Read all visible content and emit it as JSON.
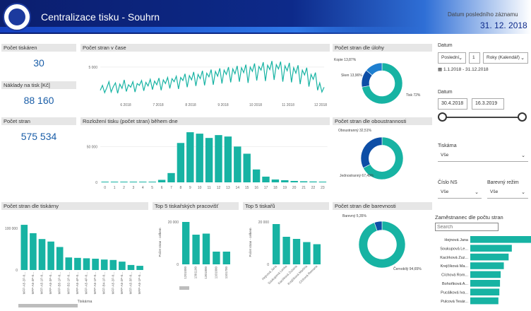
{
  "header": {
    "title": "Centralizace tisku - Souhrn",
    "last_record_label": "Datum posledního záznamu",
    "last_record_value": "31. 12. 2018"
  },
  "kpis": {
    "printers_label": "Počet tiskáren",
    "printers_value": "30",
    "costs_label": "Náklady na tisk [Kč]",
    "costs_value": "88 160",
    "pages_label": "Počet stran",
    "pages_value": "575 534"
  },
  "panels": {
    "pages_over_time": "Počet stran v čase",
    "print_distribution": "Rozložení tisku (počet stran) během dne",
    "by_task": "Počet stran dle úlohy",
    "by_duplex": "Počet stran dle oboustrannosti",
    "by_printer": "Počet stran dle tiskárny",
    "top_workstations": "Top 5 tiskařských pracovišť",
    "top_printers": "Top 5 tiskařů",
    "by_color": "Počet stran dle barevnosti",
    "employees": "Zaměstnanec dle počtu stran"
  },
  "filters": {
    "date_label": "Datum",
    "relative_mode": "Poslední",
    "relative_count": "1",
    "relative_unit": "Roky (Kalendář)",
    "relative_range": "1.1.2018 - 31.12.2018",
    "date2_label": "Datum",
    "date_from": "30.4.2018",
    "date_to": "16.3.2019",
    "printer_label": "Tiskárna",
    "printer_value": "Vše",
    "ns_label": "Číslo NS",
    "ns_value": "Vše",
    "color_label": "Barevný režim",
    "color_value": "Vše",
    "search_placeholder": "Search"
  },
  "chart_data": [
    {
      "type": "line",
      "title": "Počet stran v čase",
      "x_ticks": [
        "6 2018",
        "7 2018",
        "8 2018",
        "9 2018",
        "10 2018",
        "11 2018",
        "12 2018"
      ],
      "y_ticks": [
        "5 000",
        "0"
      ],
      "ylim": [
        0,
        6500
      ],
      "values": [
        1200,
        2000,
        800,
        1600,
        2600,
        900,
        1800,
        2400,
        700,
        2200,
        1500,
        2900,
        1000,
        2100,
        1700,
        2600,
        900,
        2300,
        2000,
        2800,
        1100,
        2500,
        1900,
        3000,
        1300,
        2700,
        2100,
        3200,
        1200,
        2900,
        2300,
        3300,
        1500,
        3100,
        2600,
        3500,
        1400,
        3300,
        2800,
        3900,
        1700,
        3600,
        2900,
        4200,
        1900,
        3800,
        3100,
        4400,
        2000,
        4000,
        3400,
        4600,
        2100,
        4300,
        3500,
        4800,
        2300,
        4500,
        3800,
        5000,
        2500,
        4700,
        3900,
        5200,
        2600,
        4900,
        4100,
        5400,
        2400,
        5000,
        4300,
        5600,
        2800,
        5100,
        4500,
        5800,
        2700,
        5300,
        4600,
        6000,
        2900,
        5400,
        4700,
        5900,
        2600,
        5200,
        4400,
        5700,
        2500,
        4900,
        4000,
        5300,
        2200,
        4500,
        3700,
        4900,
        1800,
        3800,
        3000,
        4100,
        1200,
        2400,
        900,
        1700
      ]
    },
    {
      "type": "bar",
      "title": "Rozložení tisku (počet stran) během dne",
      "categories": [
        "0",
        "1",
        "2",
        "3",
        "4",
        "5",
        "6",
        "7",
        "8",
        "9",
        "10",
        "11",
        "12",
        "13",
        "14",
        "15",
        "16",
        "17",
        "18",
        "19",
        "20",
        "21",
        "22",
        "23"
      ],
      "values": [
        800,
        600,
        500,
        500,
        500,
        600,
        3500,
        13000,
        55000,
        70000,
        68000,
        62000,
        66000,
        64000,
        50000,
        40000,
        18000,
        8000,
        4000,
        3000,
        2000,
        1500,
        1200,
        1000
      ],
      "y_ticks": [
        "50 000",
        "0"
      ],
      "ylim": [
        0,
        75000
      ]
    },
    {
      "type": "bar",
      "title": "Počet stran dle tiskárny",
      "categories": [
        "MFP-A5-2P-0...",
        "MFP-A5-3P-0...",
        "MFP-A5-1P-0...",
        "MFP-A5-3P-0...",
        "MFP-B5-1P-0...",
        "MFP-B2-1P-0...",
        "MFP-A5-4P-0...",
        "MFP-A5-4P-0...",
        "MFP-A5-1P-0...",
        "MFP-B4-1P-0...",
        "MFP-A5-2P-0...",
        "MFP-A5-2P-0...",
        "MFP-A5-3P-0...",
        "MFP-A5-1P-0..."
      ],
      "values": [
        108000,
        88000,
        74000,
        68000,
        55000,
        30000,
        29000,
        28000,
        27000,
        25000,
        24000,
        20000,
        12000,
        10000
      ],
      "xlabel": "Tiskárna",
      "y_ticks": [
        "100 000",
        "0"
      ],
      "ylim": [
        0,
        125000
      ]
    },
    {
      "type": "bar",
      "title": "Top 5 tiskařských pracovišť",
      "categories": [
        "1201000",
        "1301100",
        "1301800",
        "1101000",
        "1101700"
      ],
      "values": [
        20000,
        14000,
        14500,
        6000,
        6000
      ],
      "ylabel": "Počet stran - celkem",
      "y_ticks": [
        "20 000",
        "0"
      ],
      "ylim": [
        0,
        24000
      ]
    },
    {
      "type": "bar",
      "title": "Top 5 tiskařů",
      "categories": [
        "Hejnová Jana",
        "Soukupová Lenka",
        "Kacírková Zuzana",
        "Krejčíková Martina",
        "Cíchová Romana"
      ],
      "values": [
        19000,
        13000,
        12000,
        10500,
        9500
      ],
      "ylabel": "Počet stran - celkem",
      "y_ticks": [
        "20 000",
        "0"
      ],
      "ylim": [
        0,
        24000
      ]
    },
    {
      "type": "pie",
      "title": "Počet stran dle úlohy",
      "categories": [
        "Tisk",
        "Kopie",
        "Sken"
      ],
      "values": [
        72,
        13.87,
        13.96
      ],
      "labels": [
        "Tisk 72%",
        "Kopie 13,87%",
        "Sken 13,96%"
      ]
    },
    {
      "type": "pie",
      "title": "Počet stran dle oboustrannosti",
      "categories": [
        "Jednostranný",
        "Oboustranný"
      ],
      "values": [
        67.49,
        32.51
      ],
      "labels": [
        "Jednostranný 67,49%",
        "Oboustranný 32,51%"
      ]
    },
    {
      "type": "pie",
      "title": "Počet stran dle barevnosti",
      "categories": [
        "Černobílý",
        "Barevný"
      ],
      "values": [
        94.65,
        5.35
      ],
      "labels": [
        "Černobílý 94,65%",
        "Barevný 5,35%"
      ]
    },
    {
      "type": "bar",
      "title": "Zaměstnanec dle počtu stran",
      "categories": [
        "Hejnová Jana",
        "Soukupová Le...",
        "Kacírková Zuz...",
        "Krejčíková Ma...",
        "Cíchová Rom...",
        "Bohoňková A...",
        "Pucálková Iva...",
        "Pulcová Tesár..."
      ],
      "values": [
        19000,
        13000,
        12000,
        10500,
        9500,
        9300,
        9100,
        8800
      ],
      "xlim": [
        0,
        19000
      ]
    }
  ],
  "colors": {
    "teal": "#17b3a3",
    "dark_blue": "#0d4ea6",
    "header_navy": "#0b1e6e"
  }
}
